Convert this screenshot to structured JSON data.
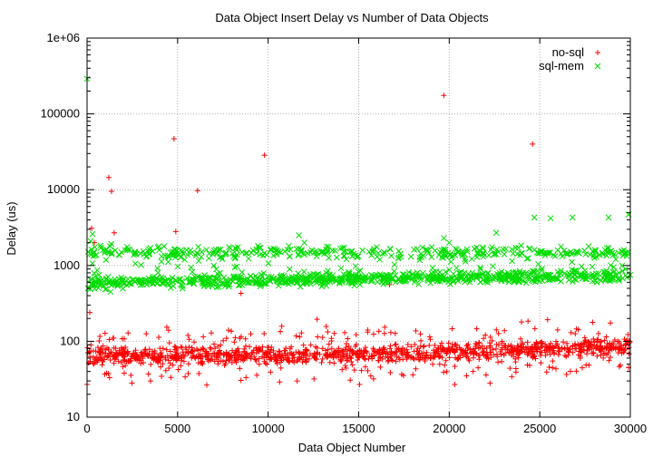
{
  "chart_data": {
    "type": "scatter",
    "title": "Data Object Insert Delay vs Number of Data Objects",
    "xlabel": "Data Object Number",
    "ylabel": "Delay (us)",
    "xlim": [
      0,
      30000
    ],
    "ylim": [
      10,
      1000000
    ],
    "y_scale": "log",
    "grid": true,
    "legend_position": "top-right",
    "x_ticks": [
      0,
      5000,
      10000,
      15000,
      20000,
      25000,
      30000
    ],
    "x_tick_labels": [
      "0",
      "5000",
      "10000",
      "15000",
      "20000",
      "25000",
      "30000"
    ],
    "y_ticks": [
      10,
      100,
      1000,
      10000,
      100000,
      1000000
    ],
    "y_tick_labels": [
      "10",
      "100",
      "1000",
      "10000",
      "100000",
      "1e+06"
    ],
    "series": [
      {
        "name": "no-sql",
        "color": "#ff0000",
        "marker": "plus",
        "baseline_approx": 65,
        "points": [
          [
            0,
            27
          ],
          [
            150,
            240
          ],
          [
            250,
            3100
          ],
          [
            400,
            2000
          ],
          [
            1200,
            14500
          ],
          [
            1350,
            9500
          ],
          [
            1500,
            2700
          ],
          [
            3500,
            30
          ],
          [
            4800,
            47000
          ],
          [
            4900,
            2800
          ],
          [
            6100,
            9700
          ],
          [
            8500,
            430
          ],
          [
            9800,
            28500
          ],
          [
            11600,
            30
          ],
          [
            12700,
            195
          ],
          [
            16700,
            560
          ],
          [
            19700,
            175000
          ],
          [
            20300,
            27
          ],
          [
            24600,
            40000
          ],
          [
            29900,
            45
          ]
        ]
      },
      {
        "name": "sql-mem",
        "color": "#00dd00",
        "marker": "cross",
        "baseline_approx": 650,
        "points": [
          [
            0,
            290000
          ],
          [
            50,
            500
          ],
          [
            200,
            2100
          ],
          [
            300,
            2600
          ],
          [
            1300,
            450
          ],
          [
            3500,
            1700
          ],
          [
            5500,
            1600
          ],
          [
            9500,
            1700
          ],
          [
            11700,
            2500
          ],
          [
            12000,
            2000
          ],
          [
            14100,
            1700
          ],
          [
            19700,
            2300
          ],
          [
            20000,
            2000
          ],
          [
            22600,
            2700
          ],
          [
            24700,
            4300
          ],
          [
            25600,
            4200
          ],
          [
            26800,
            4300
          ],
          [
            28800,
            4300
          ],
          [
            29900,
            4700
          ]
        ]
      }
    ]
  }
}
